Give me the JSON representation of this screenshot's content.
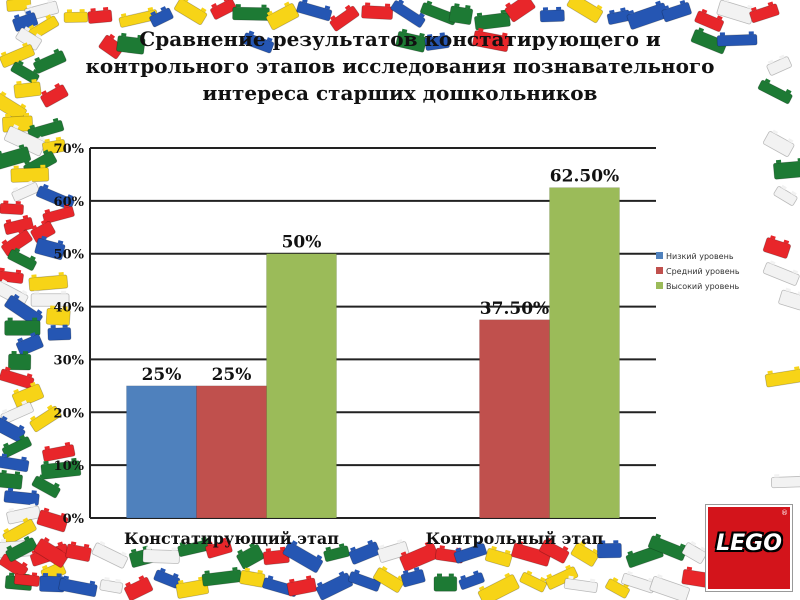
{
  "slide": {
    "title": "Сравнение результатов констатирующего и контрольного этапов исследования познавательного интереса старших дошкольников"
  },
  "logo": {
    "text": "LEGO",
    "reg": "®",
    "icon": "lego-logo-icon",
    "color": "#d3141b"
  },
  "chart_data": {
    "type": "bar",
    "categories": [
      "Констатирующий этап",
      "Контрольный этап"
    ],
    "series": [
      {
        "name": "Низкий уровень",
        "values": [
          25,
          0
        ],
        "labels": [
          "25%",
          ""
        ],
        "color": "#4f81bd"
      },
      {
        "name": "Средний уровень",
        "values": [
          25,
          37.5
        ],
        "labels": [
          "25%",
          "37.50%"
        ],
        "color": "#c0504d"
      },
      {
        "name": "Высокий уровень",
        "values": [
          50,
          62.5
        ],
        "labels": [
          "50%",
          "62.50%"
        ],
        "color": "#9bbb59"
      }
    ],
    "yticks": [
      "0%",
      "10%",
      "20%",
      "30%",
      "40%",
      "50%",
      "60%",
      "70%"
    ],
    "ylim": [
      0,
      70
    ],
    "grid": true,
    "legend": "right"
  }
}
